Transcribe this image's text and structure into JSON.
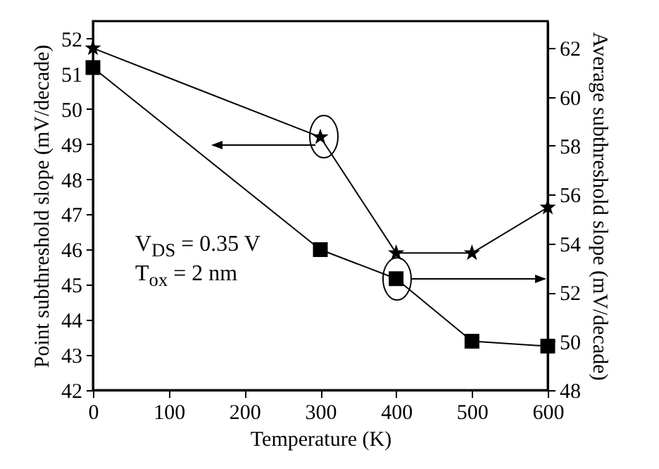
{
  "chart_data": {
    "type": "line",
    "xlabel": "Temperature (K)",
    "ylabel": "Point subthreshold slope (mV/decade)",
    "y2label": "Average subthreshold slope (mV/decade)",
    "x": [
      0,
      300,
      400,
      500,
      600
    ],
    "series": [
      {
        "color": "#000000",
        "marker": "star",
        "values": [
          51.73,
          49.2,
          45.9,
          45.9,
          47.2
        ]
      },
      {
        "color": "#000000",
        "marker": "square",
        "axis": "y2",
        "values": [
          61.2,
          53.75,
          52.56,
          50.0,
          49.8
        ]
      }
    ],
    "xlim": [
      0,
      600
    ],
    "xticks": [
      0,
      100,
      200,
      300,
      400,
      500,
      600
    ],
    "ylim": [
      42,
      52.5
    ],
    "yticks": [
      42,
      43,
      44,
      45,
      46,
      47,
      48,
      49,
      50,
      51,
      52
    ],
    "y2lim": [
      48,
      63.1
    ],
    "y2ticks": [
      48,
      50,
      52,
      54,
      56,
      58,
      60,
      62
    ],
    "grid": false,
    "line_style": "solid",
    "annotations": [
      "V$_{DS}$ = 0.35 V",
      "T$_{ox}$ = 2 nm"
    ]
  }
}
